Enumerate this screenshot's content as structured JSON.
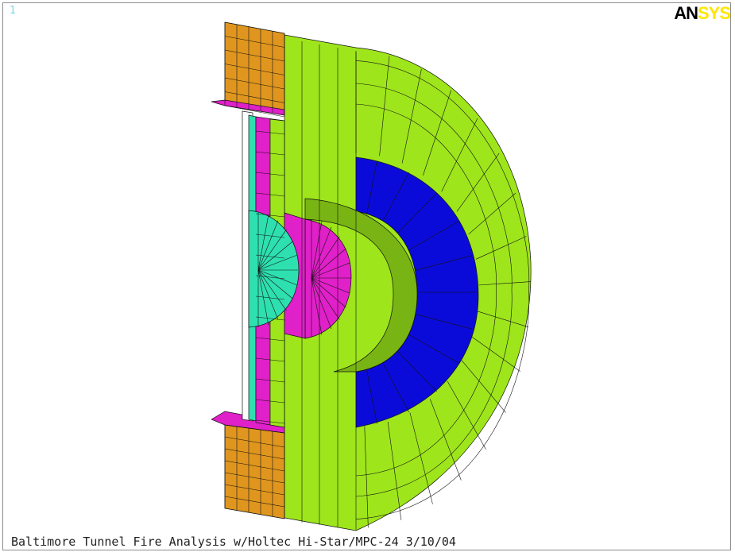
{
  "window": {
    "number": "1"
  },
  "logo": {
    "text_dark": "AN",
    "text_light": "SYS"
  },
  "caption": "Baltimore Tunnel Fire Analysis w/Holtec Hi-Star/MPC-24 3/10/04",
  "colors": {
    "orange": "#e0961e",
    "green": "#9ee51c",
    "magenta": "#e020c8",
    "teal": "#2ee0b0",
    "blue": "#0b0bd9",
    "dark_green": "#78b414"
  }
}
